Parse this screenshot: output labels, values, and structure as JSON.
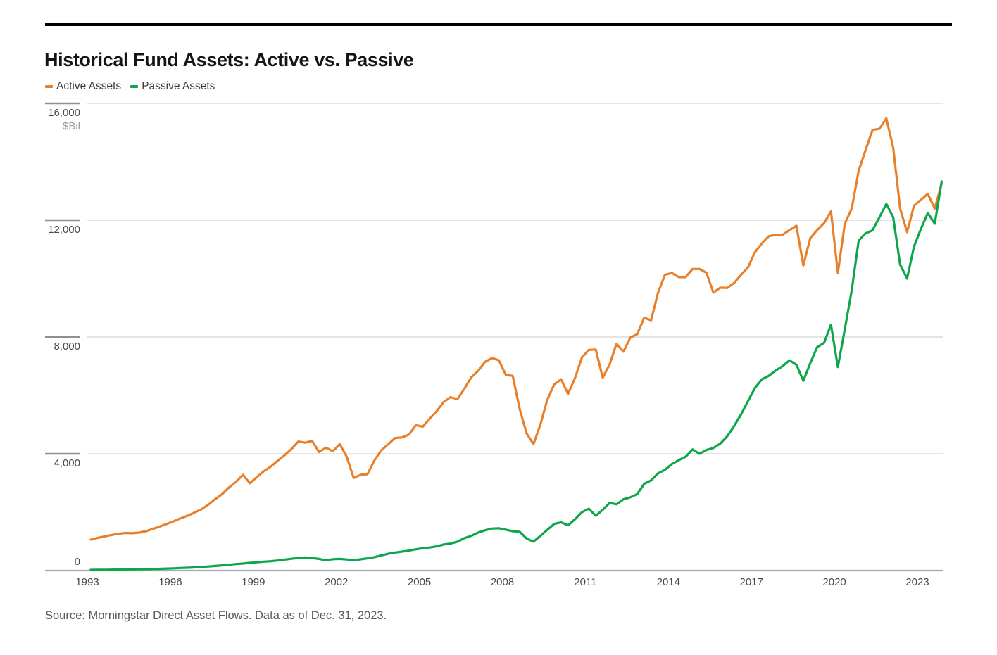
{
  "header": {
    "title": "Historical Fund Assets: Active vs. Passive"
  },
  "footer": {
    "source": "Source: Morningstar Direct Asset Flows. Data as of Dec. 31, 2023."
  },
  "chart_data": {
    "type": "line",
    "title": "Historical Fund Assets: Active vs. Passive",
    "ylabel": "$Bil",
    "xlabel": "",
    "ylim": [
      0,
      16000
    ],
    "grid": "horizontal",
    "legend_position": "top-left",
    "y_ticks": [
      {
        "value": 16000,
        "label": "16,000"
      },
      {
        "value": 12000,
        "label": "12,000"
      },
      {
        "value": 8000,
        "label": "8,000"
      },
      {
        "value": 4000,
        "label": "4,000"
      },
      {
        "value": 0,
        "label": "0"
      }
    ],
    "unit_label": "$Bil",
    "x_ticks": [
      1993,
      1996,
      1999,
      2002,
      2005,
      2008,
      2011,
      2014,
      2017,
      2020,
      2023
    ],
    "x_start_year": 1993,
    "points_per_year": 4,
    "x_frequency": "quarterly",
    "series": [
      {
        "name": "Active Assets",
        "color": "#E8802B",
        "values": [
          1060,
          1120,
          1170,
          1220,
          1260,
          1290,
          1280,
          1300,
          1350,
          1430,
          1510,
          1600,
          1690,
          1790,
          1880,
          1990,
          2100,
          2260,
          2450,
          2620,
          2850,
          3040,
          3280,
          2990,
          3200,
          3400,
          3560,
          3760,
          3950,
          4160,
          4420,
          4380,
          4440,
          4060,
          4210,
          4090,
          4330,
          3900,
          3170,
          3280,
          3300,
          3770,
          4120,
          4330,
          4540,
          4560,
          4660,
          4980,
          4930,
          5200,
          5460,
          5770,
          5940,
          5870,
          6230,
          6620,
          6840,
          7150,
          7280,
          7200,
          6700,
          6670,
          5530,
          4700,
          4330,
          5000,
          5860,
          6380,
          6550,
          6050,
          6600,
          7300,
          7560,
          7570,
          6610,
          7060,
          7770,
          7500,
          7980,
          8100,
          8660,
          8570,
          9520,
          10130,
          10190,
          10050,
          10050,
          10330,
          10330,
          10200,
          9520,
          9690,
          9680,
          9850,
          10130,
          10380,
          10900,
          11200,
          11450,
          11500,
          11500,
          11660,
          11810,
          10450,
          11380,
          11660,
          11900,
          12300,
          10190,
          11880,
          12400,
          13690,
          14400,
          15090,
          15130,
          15490,
          14480,
          12400,
          11590,
          12500,
          12700,
          12900,
          12400,
          13250
        ]
      },
      {
        "name": "Passive Assets",
        "color": "#0EA64D",
        "values": [
          23,
          26,
          29,
          32,
          35,
          38,
          40,
          43,
          48,
          54,
          61,
          70,
          78,
          88,
          97,
          108,
          122,
          140,
          158,
          178,
          200,
          225,
          240,
          265,
          285,
          305,
          320,
          345,
          375,
          405,
          430,
          450,
          430,
          400,
          355,
          390,
          400,
          380,
          355,
          385,
          420,
          460,
          520,
          575,
          620,
          650,
          685,
          730,
          765,
          790,
          830,
          895,
          925,
          990,
          1110,
          1190,
          1300,
          1380,
          1440,
          1450,
          1400,
          1350,
          1330,
          1100,
          990,
          1190,
          1400,
          1600,
          1650,
          1550,
          1760,
          2000,
          2120,
          1880,
          2080,
          2320,
          2270,
          2440,
          2510,
          2620,
          2970,
          3090,
          3330,
          3450,
          3650,
          3780,
          3900,
          4150,
          4000,
          4130,
          4200,
          4350,
          4600,
          4950,
          5350,
          5800,
          6250,
          6550,
          6670,
          6850,
          7000,
          7200,
          7050,
          6500,
          7100,
          7650,
          7800,
          8420,
          6970,
          8260,
          9600,
          11300,
          11550,
          11650,
          12100,
          12560,
          12100,
          10480,
          10000,
          11100,
          11700,
          12250,
          11880,
          13330
        ]
      }
    ]
  }
}
